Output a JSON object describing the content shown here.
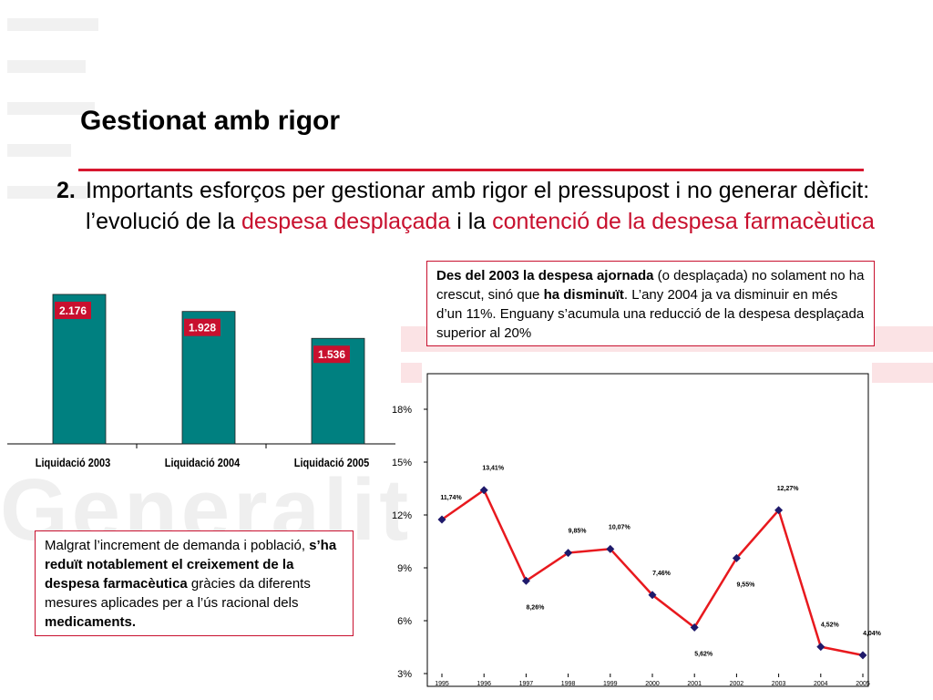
{
  "page": {
    "watermark_letters": "Generalit",
    "title": "Gestionat amb rigor",
    "point": {
      "number": "2.",
      "text_1": "Importants esforços per gestionar amb rigor el pressupost i no generar dèficit: l’evolució de la ",
      "highlight_1": "despesa desplaçada",
      "text_2": " i la ",
      "highlight_2": "contenció de la despesa farmacèutica"
    }
  },
  "box_top": {
    "bold_1": "Des del 2003 la despesa ajornada",
    "text_1": " (o desplaçada) no solament no ha crescut, sinó que ",
    "bold_2": "ha disminuït",
    "text_2": ". L’any 2004 ja va disminuir en més d’un 11%. Enguany s’acumula una reducció de la despesa desplaçada superior al 20%"
  },
  "box_bottom": {
    "text_1": "Malgrat l’increment de demanda i població, ",
    "bold_1": "s’ha reduït notablement el creixement de la despesa farmacèutica",
    "text_2": " gràcies da diferents mesures aplicades per a l’ús racional dels ",
    "bold_2": "medicaments."
  },
  "colors": {
    "accent": "#c8102e",
    "bar": "#008080",
    "line": "#e8191e",
    "marker": "#1f1a6b"
  },
  "chart_data": [
    {
      "type": "bar",
      "categories": [
        "Liquidació 2003",
        "Liquidació 2004",
        "Liquidació 2005"
      ],
      "values": [
        2176,
        1928,
        1536
      ],
      "value_labels": [
        "2.176",
        "1.928",
        "1.536"
      ],
      "title": "",
      "xlabel": "",
      "ylabel": "",
      "ylim": [
        0,
        2250
      ],
      "grid": false
    },
    {
      "type": "line",
      "x": [
        "1995",
        "1996",
        "1997",
        "1998",
        "1999",
        "2000",
        "2001",
        "2002",
        "2003",
        "2004",
        "2005"
      ],
      "values": [
        11.74,
        13.41,
        8.26,
        9.85,
        10.07,
        7.46,
        5.62,
        9.55,
        12.27,
        4.52,
        4.04
      ],
      "value_labels": [
        "11,74%",
        "13,41%",
        "8,26%",
        "9,85%",
        "10,07%",
        "7,46%",
        "5,62%",
        "9,55%",
        "12,27%",
        "4,52%",
        "4,04%"
      ],
      "label_side": [
        "above",
        "above",
        "below",
        "above",
        "above",
        "above",
        "below",
        "below",
        "above",
        "above",
        "above"
      ],
      "yticks": [
        3,
        6,
        9,
        12,
        15,
        18
      ],
      "ytick_labels": [
        "3%",
        "6%",
        "9%",
        "12%",
        "15%",
        "18%"
      ],
      "ylim": [
        3,
        18
      ],
      "title": "",
      "xlabel": "",
      "ylabel": "",
      "grid": false
    }
  ]
}
